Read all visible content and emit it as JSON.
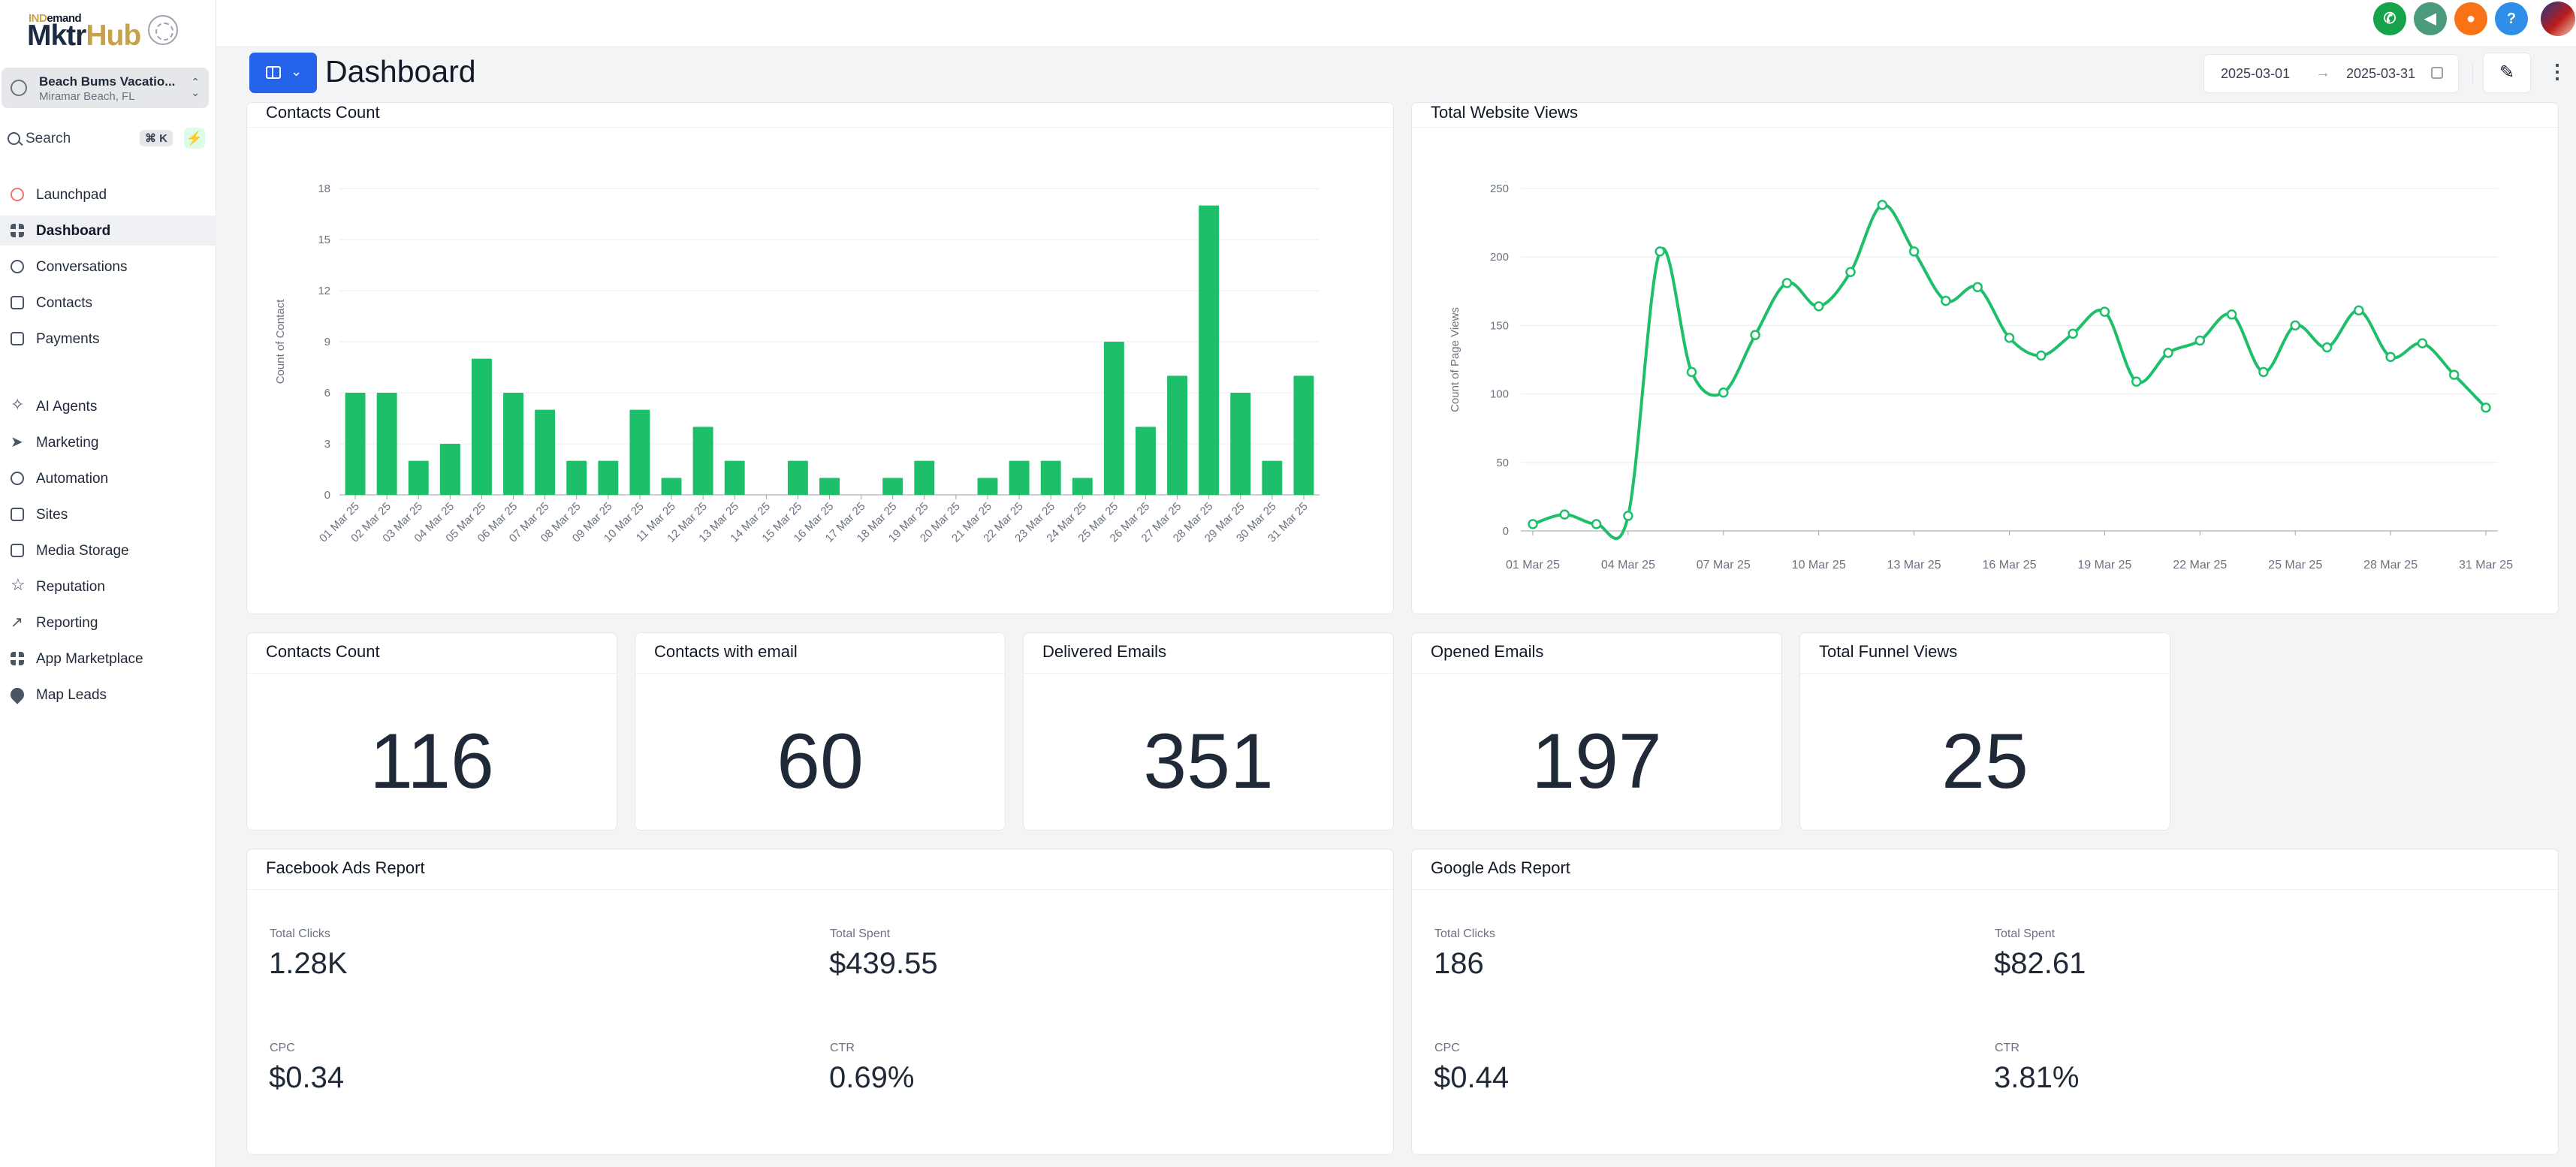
{
  "brand": {
    "name_prefix": "IND",
    "name_suffix": "emand",
    "name_main_a": "Mktr",
    "name_main_b": "Hub"
  },
  "location": {
    "name": "Beach Bums Vacatio...",
    "city": "Miramar Beach, FL"
  },
  "search": {
    "label": "Search",
    "shortcut": "⌘ K"
  },
  "nav": {
    "group1": [
      {
        "label": "Launchpad",
        "icon": "launchpad-icon"
      },
      {
        "label": "Dashboard",
        "icon": "dashboard-icon",
        "active": true
      },
      {
        "label": "Conversations",
        "icon": "chat-icon"
      },
      {
        "label": "Contacts",
        "icon": "contacts-icon"
      },
      {
        "label": "Payments",
        "icon": "payments-icon"
      }
    ],
    "group2": [
      {
        "label": "AI Agents",
        "icon": "sparkle-icon"
      },
      {
        "label": "Marketing",
        "icon": "send-icon"
      },
      {
        "label": "Automation",
        "icon": "automation-icon"
      },
      {
        "label": "Sites",
        "icon": "sites-icon"
      },
      {
        "label": "Media Storage",
        "icon": "image-icon"
      },
      {
        "label": "Reputation",
        "icon": "star-icon"
      },
      {
        "label": "Reporting",
        "icon": "trend-icon"
      },
      {
        "label": "App Marketplace",
        "icon": "grid-icon"
      },
      {
        "label": "Map Leads",
        "icon": "map-pin-icon"
      }
    ]
  },
  "topbar": {
    "icons": [
      {
        "name": "phone-icon",
        "glyph": "✆",
        "color": "#16a34a"
      },
      {
        "name": "megaphone-icon",
        "glyph": "◀",
        "color": "#4a9a7c"
      },
      {
        "name": "bell-icon",
        "glyph": "●",
        "color": "#f97316"
      },
      {
        "name": "help-icon",
        "glyph": "?",
        "color": "#2f8fe8"
      }
    ]
  },
  "header": {
    "title": "Dashboard",
    "date_start": "2025-03-01",
    "date_arrow": "→",
    "date_end": "2025-03-31"
  },
  "contacts_chart": {
    "title": "Contacts Count"
  },
  "views_chart": {
    "title": "Total Website Views"
  },
  "chart_data": [
    {
      "type": "bar",
      "title": "Contacts Count",
      "ylabel": "Count of Contact",
      "ylim": [
        0,
        18
      ],
      "yticks": [
        0,
        3,
        6,
        9,
        12,
        15,
        18
      ],
      "color": "#1dbf6a",
      "categories": [
        "01 Mar 25",
        "02 Mar 25",
        "03 Mar 25",
        "04 Mar 25",
        "05 Mar 25",
        "06 Mar 25",
        "07 Mar 25",
        "08 Mar 25",
        "09 Mar 25",
        "10 Mar 25",
        "11 Mar 25",
        "12 Mar 25",
        "13 Mar 25",
        "14 Mar 25",
        "15 Mar 25",
        "16 Mar 25",
        "17 Mar 25",
        "18 Mar 25",
        "19 Mar 25",
        "20 Mar 25",
        "21 Mar 25",
        "22 Mar 25",
        "23 Mar 25",
        "24 Mar 25",
        "25 Mar 25",
        "26 Mar 25",
        "27 Mar 25",
        "28 Mar 25",
        "29 Mar 25",
        "30 Mar 25",
        "31 Mar 25"
      ],
      "values": [
        6,
        6,
        2,
        3,
        8,
        6,
        5,
        2,
        2,
        5,
        1,
        4,
        2,
        0,
        2,
        1,
        0,
        1,
        2,
        0,
        1,
        2,
        2,
        1,
        9,
        4,
        7,
        17,
        6,
        2,
        7
      ],
      "grid": true
    },
    {
      "type": "line",
      "title": "Total Website Views",
      "ylabel": "Count of Page Views",
      "ylim": [
        0,
        250
      ],
      "yticks": [
        0,
        50,
        100,
        150,
        200,
        250
      ],
      "color": "#1dbf6a",
      "x": [
        "01 Mar 25",
        "02 Mar 25",
        "03 Mar 25",
        "04 Mar 25",
        "05 Mar 25",
        "06 Mar 25",
        "07 Mar 25",
        "08 Mar 25",
        "09 Mar 25",
        "10 Mar 25",
        "11 Mar 25",
        "12 Mar 25",
        "13 Mar 25",
        "14 Mar 25",
        "15 Mar 25",
        "16 Mar 25",
        "17 Mar 25",
        "18 Mar 25",
        "19 Mar 25",
        "20 Mar 25",
        "21 Mar 25",
        "22 Mar 25",
        "23 Mar 25",
        "24 Mar 25",
        "25 Mar 25",
        "26 Mar 25",
        "27 Mar 25",
        "28 Mar 25",
        "29 Mar 25",
        "30 Mar 25",
        "31 Mar 25"
      ],
      "xticks": [
        "01 Mar 25",
        "04 Mar 25",
        "07 Mar 25",
        "10 Mar 25",
        "13 Mar 25",
        "16 Mar 25",
        "19 Mar 25",
        "22 Mar 25",
        "25 Mar 25",
        "28 Mar 25",
        "31 Mar 25"
      ],
      "values": [
        5,
        12,
        5,
        11,
        204,
        116,
        101,
        143,
        181,
        164,
        189,
        238,
        204,
        168,
        178,
        141,
        128,
        144,
        160,
        109,
        130,
        139,
        158,
        116,
        150,
        134,
        161,
        127,
        137,
        114,
        90
      ],
      "grid": true
    }
  ],
  "kpis": [
    {
      "title": "Contacts Count",
      "value": "116"
    },
    {
      "title": "Contacts with email",
      "value": "60"
    },
    {
      "title": "Delivered Emails",
      "value": "351"
    },
    {
      "title": "Opened Emails",
      "value": "197"
    },
    {
      "title": "Total Funnel Views",
      "value": "25"
    }
  ],
  "facebook": {
    "title": "Facebook Ads Report",
    "clicks_label": "Total Clicks",
    "clicks": "1.28K",
    "spent_label": "Total Spent",
    "spent": "$439.55",
    "cpc_label": "CPC",
    "cpc": "$0.34",
    "ctr_label": "CTR",
    "ctr": "0.69%"
  },
  "google": {
    "title": "Google Ads Report",
    "clicks_label": "Total Clicks",
    "clicks": "186",
    "spent_label": "Total Spent",
    "spent": "$82.61",
    "cpc_label": "CPC",
    "cpc": "$0.44",
    "ctr_label": "CTR",
    "ctr": "3.81%"
  }
}
